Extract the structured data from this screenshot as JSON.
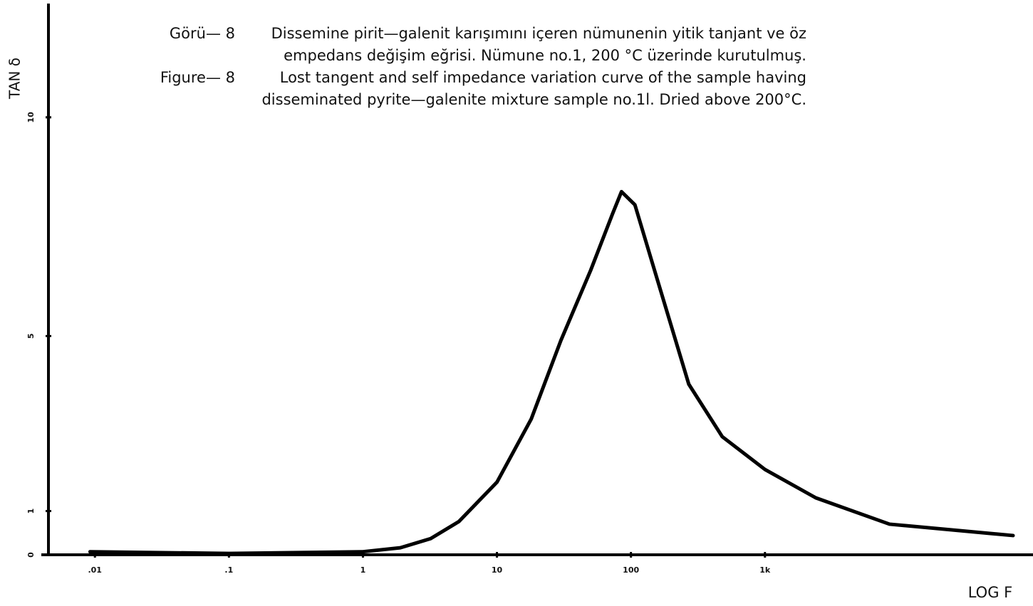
{
  "chart_data": {
    "type": "line",
    "caption": [
      {
        "label": "Görü— 8",
        "lines": [
          "Dissemine pirit—galenit karışımını içeren nümunenin yitik tanjant ve öz",
          "empedans değişim eğrisi. Nümune no.1, 200 °C üzerinde kurutulmuş."
        ]
      },
      {
        "label": "Figure— 8",
        "lines": [
          "Lost tangent and self impedance variation curve of the sample having",
          "disseminated pyrite—galenite mixture sample no.1l. Dried above 200°C."
        ]
      }
    ],
    "ylabel": "TAN δ",
    "xlabel": "LOG F",
    "x": [
      0.0092,
      0.1,
      1,
      1.9,
      3.2,
      5.2,
      10,
      18,
      30,
      50,
      73,
      85,
      107,
      150,
      270,
      480,
      1000,
      2400,
      8500,
      71000
    ],
    "series": [
      {
        "color": "#000000",
        "values": [
          0.07,
          0.03,
          0.07,
          0.16,
          0.37,
          0.76,
          1.66,
          3.1,
          4.9,
          6.5,
          7.8,
          8.3,
          8.0,
          6.5,
          3.9,
          2.7,
          1.95,
          1.3,
          0.7,
          0.44
        ]
      }
    ],
    "xscale": "log",
    "xlim": [
      0.0045,
      100000
    ],
    "xticks": [
      {
        "value": 0.01,
        "label": ".01"
      },
      {
        "value": 0.1,
        "label": ".1"
      },
      1,
      10,
      100,
      {
        "value": 1000,
        "label": "1k"
      }
    ],
    "ylim": [
      0,
      12.6
    ],
    "yticks": [
      0,
      1,
      5,
      10
    ]
  }
}
